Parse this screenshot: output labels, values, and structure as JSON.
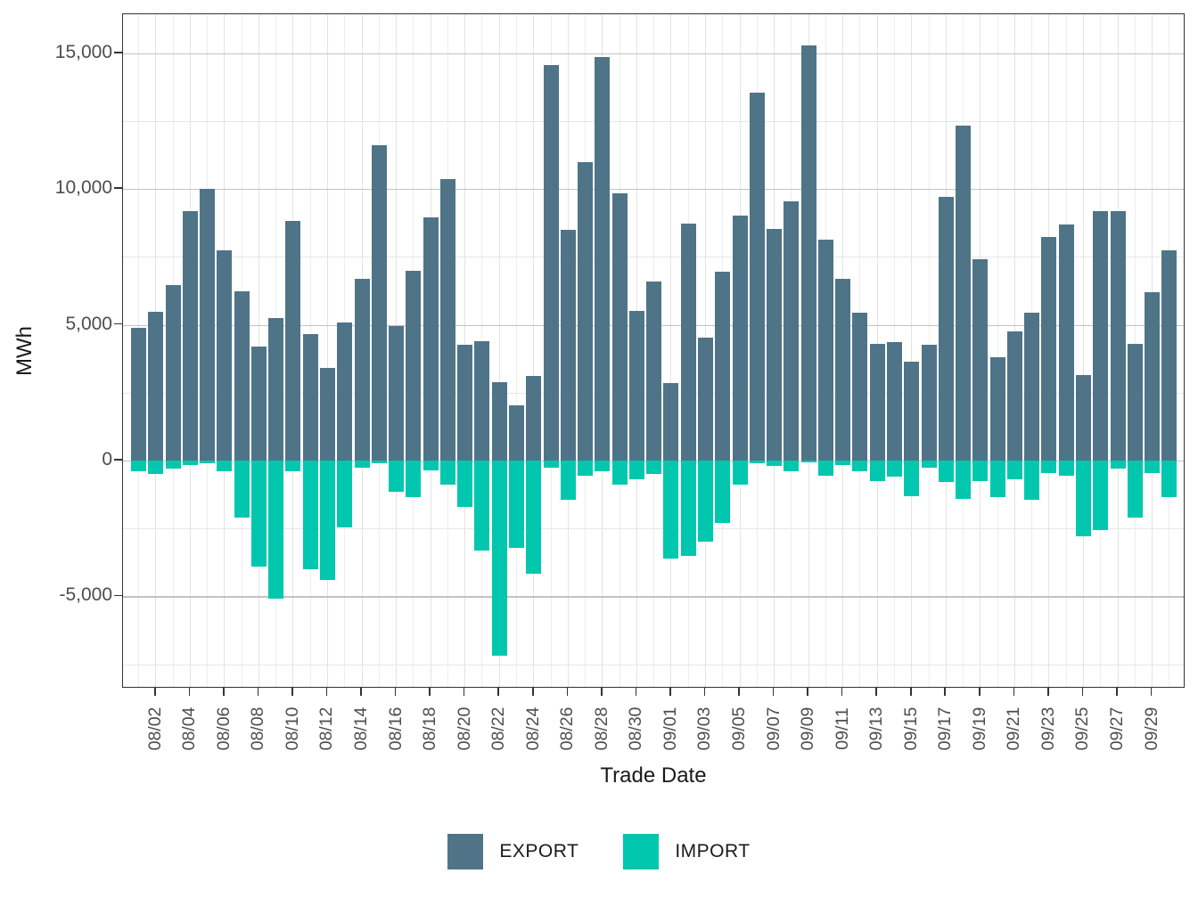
{
  "chart_data": {
    "type": "bar",
    "title": "",
    "xlabel": "Trade Date",
    "ylabel": "MWh",
    "legend_position": "bottom",
    "grid": true,
    "ylim": [
      -8400,
      16440
    ],
    "yticks": [
      15000,
      10000,
      5000,
      0,
      -5000
    ],
    "ytick_labels": [
      "15,000",
      "10,000",
      "5,000",
      "0",
      "-5,000"
    ],
    "minor_yticks": [
      12500,
      7500,
      2500,
      -2500,
      -7500
    ],
    "x": [
      "08/01",
      "08/02",
      "08/03",
      "08/04",
      "08/05",
      "08/06",
      "08/07",
      "08/08",
      "08/09",
      "08/10",
      "08/11",
      "08/12",
      "08/13",
      "08/14",
      "08/15",
      "08/16",
      "08/17",
      "08/18",
      "08/19",
      "08/20",
      "08/21",
      "08/22",
      "08/23",
      "08/24",
      "08/25",
      "08/26",
      "08/27",
      "08/28",
      "08/29",
      "08/30",
      "08/31",
      "09/01",
      "09/02",
      "09/03",
      "09/04",
      "09/05",
      "09/06",
      "09/07",
      "09/08",
      "09/09",
      "09/10",
      "09/11",
      "09/12",
      "09/13",
      "09/14",
      "09/15",
      "09/16",
      "09/17",
      "09/18",
      "09/19",
      "09/20",
      "09/21",
      "09/22",
      "09/23",
      "09/24",
      "09/25",
      "09/26",
      "09/27",
      "09/28",
      "09/29",
      "09/30"
    ],
    "x_tick_labels": [
      "08/02",
      "08/04",
      "08/06",
      "08/08",
      "08/10",
      "08/12",
      "08/14",
      "08/16",
      "08/18",
      "08/20",
      "08/22",
      "08/24",
      "08/26",
      "08/28",
      "08/30",
      "09/01",
      "09/03",
      "09/05",
      "09/07",
      "09/09",
      "09/11",
      "09/13",
      "09/15",
      "09/17",
      "09/19",
      "09/21",
      "09/23",
      "09/25",
      "09/27",
      "09/29"
    ],
    "series": [
      {
        "name": "EXPORT",
        "color": "#4f7488",
        "values": [
          4900,
          5480,
          6460,
          9200,
          10000,
          7730,
          6240,
          4210,
          5250,
          8830,
          4650,
          3400,
          5100,
          6700,
          11600,
          4950,
          7000,
          8950,
          10350,
          4250,
          4400,
          2900,
          2050,
          3100,
          14550,
          8500,
          11000,
          14850,
          9840,
          5520,
          6590,
          2840,
          8730,
          4530,
          6940,
          9010,
          13560,
          8540,
          9540,
          15300,
          8150,
          6700,
          5450,
          4300,
          4350,
          3650,
          4250,
          9700,
          12350,
          7400,
          3800,
          4750,
          5450,
          8250,
          8700,
          3150,
          9200,
          9200,
          4300,
          6200,
          7750
        ]
      },
      {
        "name": "IMPORT",
        "color": "#00c7ad",
        "values": [
          -400,
          -500,
          -300,
          -150,
          -100,
          -400,
          -2100,
          -3900,
          -5100,
          -400,
          -4000,
          -4400,
          -2450,
          -250,
          -100,
          -1150,
          -1350,
          -350,
          -900,
          -1700,
          -3300,
          -7200,
          -3200,
          -4150,
          -250,
          -1450,
          -550,
          -400,
          -900,
          -700,
          -500,
          -3600,
          -3500,
          -3000,
          -2300,
          -900,
          -100,
          -200,
          -400,
          -50,
          -550,
          -150,
          -400,
          -750,
          -600,
          -1300,
          -250,
          -800,
          -1400,
          -750,
          -1350,
          -700,
          -1450,
          -450,
          -550,
          -2800,
          -2550,
          -300,
          -2100,
          -450,
          -1350
        ]
      }
    ],
    "colors": {
      "export": "#4f7488",
      "import": "#00c7ad",
      "axis_text": "#4d4d4d",
      "title_text": "#1a1a1a",
      "panel_border": "#333333",
      "major_grid": "#c3c3c3",
      "minor_grid": "#e7e7e7"
    }
  }
}
